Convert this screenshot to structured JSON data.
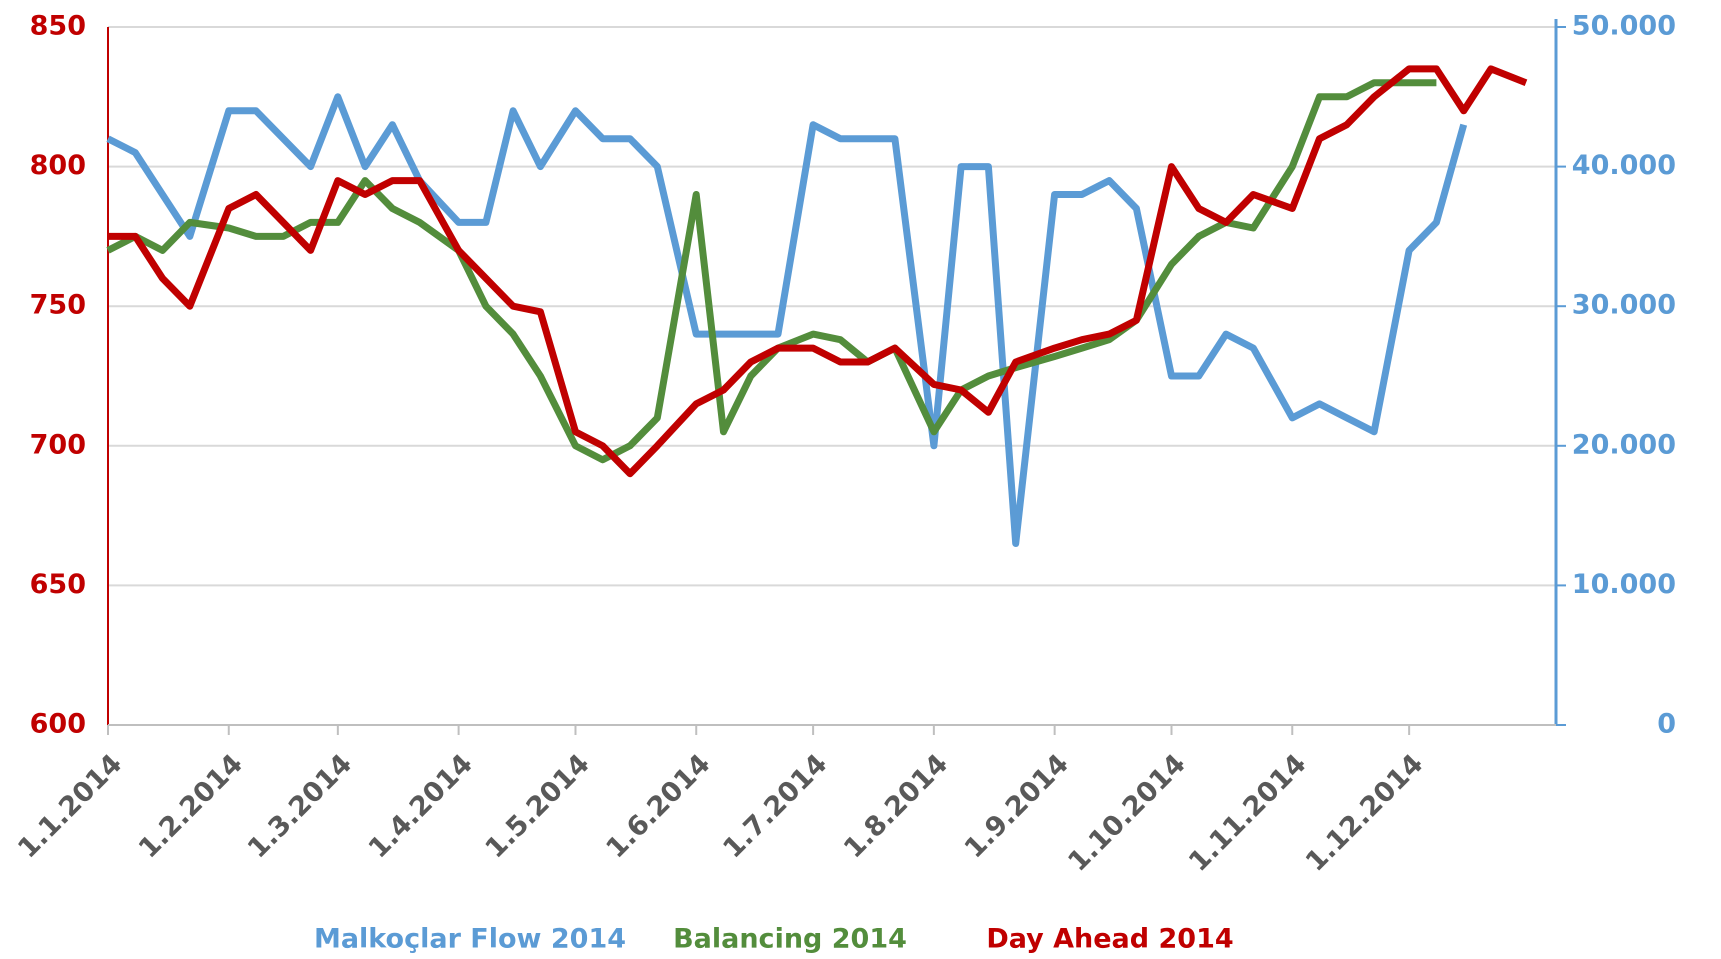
{
  "chart_data": {
    "type": "line",
    "x": [
      "1.1.2014",
      "8.1.2014",
      "15.1.2014",
      "22.1.2014",
      "1.2.2014",
      "8.2.2014",
      "15.2.2014",
      "22.2.2014",
      "1.3.2014",
      "8.3.2014",
      "15.3.2014",
      "22.3.2014",
      "1.4.2014",
      "8.4.2014",
      "15.4.2014",
      "22.4.2014",
      "1.5.2014",
      "8.5.2014",
      "15.5.2014",
      "22.5.2014",
      "1.6.2014",
      "8.6.2014",
      "15.6.2014",
      "22.6.2014",
      "1.7.2014",
      "8.7.2014",
      "15.7.2014",
      "22.7.2014",
      "1.8.2014",
      "8.8.2014",
      "15.8.2014",
      "22.8.2014",
      "1.9.2014",
      "8.9.2014",
      "15.9.2014",
      "22.9.2014",
      "1.10.2014",
      "8.10.2014",
      "15.10.2014",
      "22.10.2014",
      "1.11.2014",
      "8.11.2014",
      "15.11.2014",
      "22.11.2014",
      "1.12.2014",
      "8.12.2014",
      "15.12.2014",
      "22.12.2014",
      "31.12.2014"
    ],
    "series": [
      {
        "name": "Malkoçlar Flow 2014",
        "color": "#5b9bd5",
        "axis": "y2",
        "values": [
          42000,
          41000,
          38000,
          35000,
          44000,
          44000,
          42000,
          40000,
          45000,
          40000,
          43000,
          39000,
          36000,
          36000,
          44000,
          40000,
          44000,
          42000,
          42000,
          40000,
          28000,
          28000,
          28000,
          28000,
          43000,
          42000,
          42000,
          42000,
          20000,
          40000,
          40000,
          13000,
          38000,
          38000,
          39000,
          37000,
          25000,
          25000,
          28000,
          27000,
          22000,
          23000,
          22000,
          21000,
          34000,
          36000,
          43000,
          null,
          null
        ]
      },
      {
        "name": "Balancing 2014",
        "color": "#538d3c",
        "values": [
          770,
          775,
          770,
          780,
          778,
          775,
          775,
          780,
          780,
          795,
          785,
          780,
          770,
          750,
          740,
          725,
          700,
          695,
          700,
          710,
          790,
          705,
          725,
          735,
          740,
          738,
          730,
          735,
          705,
          720,
          725,
          728,
          732,
          735,
          738,
          745,
          765,
          775,
          780,
          778,
          800,
          825,
          825,
          830,
          830,
          830,
          null,
          null,
          null
        ]
      },
      {
        "name": "Day Ahead 2014",
        "color": "#c00000",
        "values": [
          775,
          775,
          760,
          750,
          785,
          790,
          780,
          770,
          795,
          790,
          795,
          795,
          770,
          760,
          750,
          748,
          705,
          700,
          690,
          700,
          715,
          720,
          730,
          735,
          735,
          730,
          730,
          735,
          722,
          720,
          712,
          730,
          735,
          738,
          740,
          745,
          800,
          785,
          780,
          790,
          785,
          810,
          815,
          825,
          835,
          835,
          820,
          835,
          830
        ]
      }
    ],
    "xlim": [
      "1.1.2014",
      "31.12.2014"
    ],
    "xticks": [
      "1.1.2014",
      "1.2.2014",
      "1.3.2014",
      "1.4.2014",
      "1.5.2014",
      "1.6.2014",
      "1.7.2014",
      "1.8.2014",
      "1.9.2014",
      "1.10.2014",
      "1.11.2014",
      "1.12.2014"
    ],
    "ylim": [
      600,
      850
    ],
    "yticks": [
      600,
      650,
      700,
      750,
      800,
      850
    ],
    "y2lim": [
      0,
      50000
    ],
    "y2ticks": [
      0,
      {
        "value": 10000,
        "label": "10.000"
      },
      {
        "value": 20000,
        "label": "20.000"
      },
      {
        "value": 30000,
        "label": "30.000"
      },
      {
        "value": 40000,
        "label": "40.000"
      },
      {
        "value": 50000,
        "label": "50.000"
      }
    ],
    "grid": true,
    "legend": "bottom"
  }
}
